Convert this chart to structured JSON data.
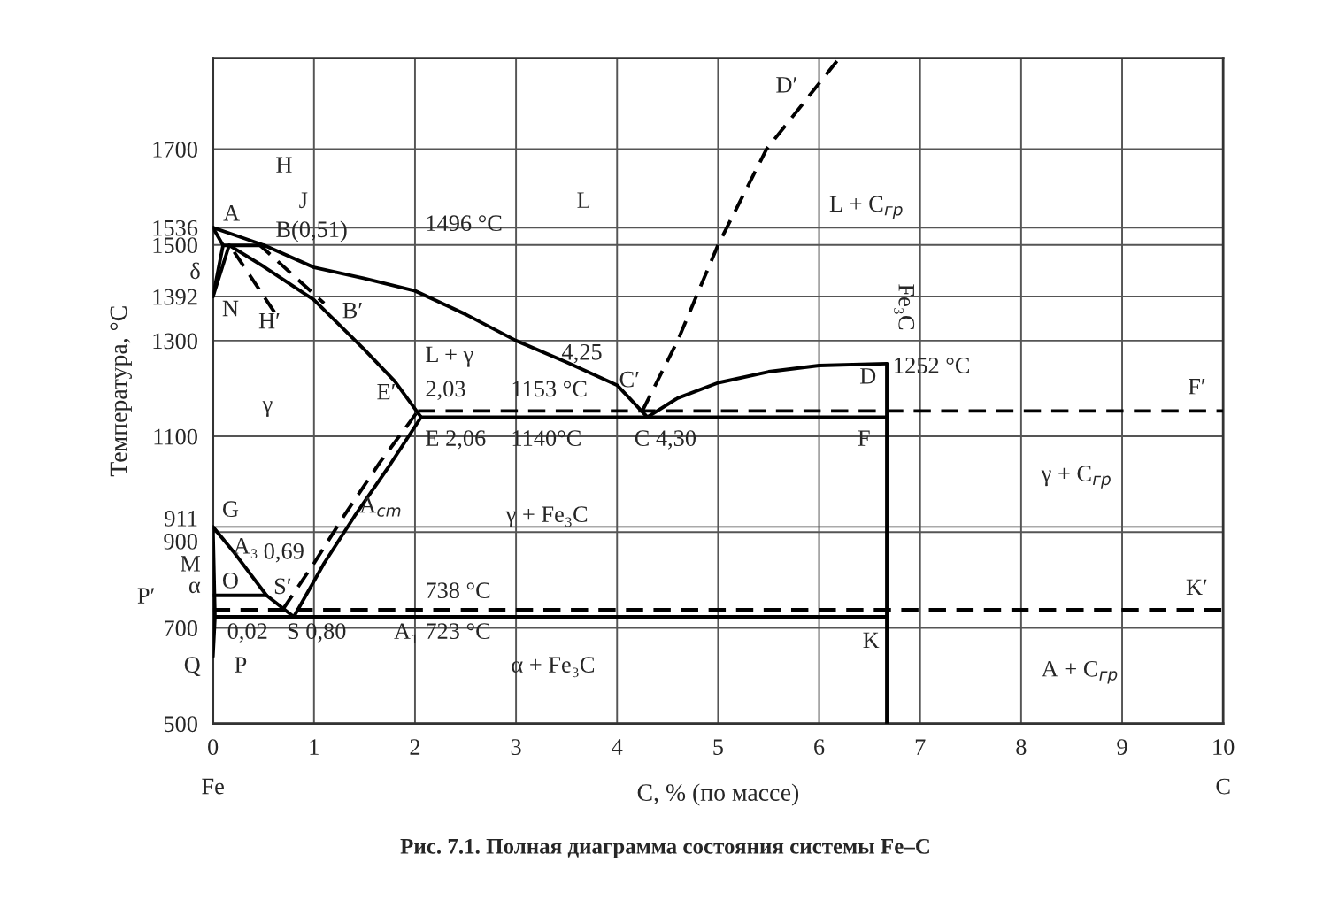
{
  "chart_data": {
    "type": "line",
    "title": "Рис. 7.1. Полная диаграмма состояния системы Fe–C",
    "xlabel": "C, % (по массе)",
    "ylabel": "Температура, °C",
    "xlim": [
      0,
      10
    ],
    "ylim": [
      500,
      1890
    ],
    "xticks": [
      0,
      1,
      2,
      3,
      4,
      5,
      6,
      7,
      8,
      9,
      10
    ],
    "yticks": [
      500,
      700,
      900,
      911,
      1100,
      1300,
      1392,
      1500,
      1536,
      1700
    ],
    "grid": true,
    "marker": "none",
    "series": [
      {
        "color": "#000000",
        "line_style": "solid",
        "x": [
          0,
          0.51,
          1,
          1.5,
          2,
          2.5,
          3,
          3.5,
          4,
          4.3
        ],
        "values": [
          1536,
          1499,
          1453,
          1430,
          1404,
          1355,
          1300,
          1255,
          1207,
          1140
        ]
      },
      {
        "color": "#000000",
        "line_style": "solid",
        "x": [
          4.3,
          4.6,
          5,
          5.5,
          6,
          6.67
        ],
        "values": [
          1140,
          1180,
          1212,
          1235,
          1248,
          1252
        ]
      },
      {
        "color": "#000000",
        "line_style": "dashed",
        "x": [
          4.25,
          4.6,
          5.0,
          5.48,
          6.2
        ],
        "values": [
          1153,
          1300,
          1500,
          1700,
          1890
        ]
      },
      {
        "color": "#000000",
        "line_style": "solid",
        "x": [
          0.16,
          0.5,
          1,
          1.5,
          1.8,
          2.06
        ],
        "values": [
          1499,
          1455,
          1385,
          1281,
          1215,
          1140
        ]
      },
      {
        "color": "#000000",
        "line_style": "dashed",
        "x": [
          0.44,
          1.1
        ],
        "values": [
          1504,
          1378
        ]
      },
      {
        "color": "#000000",
        "line_style": "dashed",
        "x": [
          0.21,
          0.61
        ],
        "values": [
          1485,
          1359
        ]
      },
      {
        "color": "#000000",
        "line_style": "solid",
        "x": [
          0,
          0.1
        ],
        "values": [
          1536,
          1499
        ]
      },
      {
        "color": "#000000",
        "line_style": "solid",
        "x": [
          0.1,
          0.51
        ],
        "values": [
          1499,
          1499
        ]
      },
      {
        "color": "#000000",
        "line_style": "solid",
        "x": [
          0.1,
          0
        ],
        "values": [
          1499,
          1392
        ]
      },
      {
        "color": "#000000",
        "line_style": "solid",
        "x": [
          0.16,
          0
        ],
        "values": [
          1499,
          1392
        ]
      },
      {
        "color": "#000000",
        "line_style": "solid",
        "x": [
          2.06,
          6.67
        ],
        "values": [
          1140,
          1140
        ]
      },
      {
        "color": "#000000",
        "line_style": "dashed",
        "x": [
          2.03,
          10
        ],
        "values": [
          1153,
          1153
        ]
      },
      {
        "color": "#000000",
        "line_style": "solid",
        "x": [
          0.8,
          1.1,
          1.4,
          1.75,
          2.06
        ],
        "values": [
          723,
          835,
          933,
          1040,
          1140
        ]
      },
      {
        "color": "#000000",
        "line_style": "dashed",
        "x": [
          0.69,
          1.0,
          1.3,
          1.65,
          2.03
        ],
        "values": [
          738,
          835,
          935,
          1045,
          1153
        ]
      },
      {
        "color": "#000000",
        "line_style": "solid",
        "x": [
          0,
          0.2,
          0.53,
          0.8
        ],
        "values": [
          911,
          860,
          768,
          723
        ]
      },
      {
        "color": "#000000",
        "line_style": "solid",
        "x": [
          0,
          0.02,
          0
        ],
        "values": [
          911,
          723,
          640
        ]
      },
      {
        "color": "#000000",
        "line_style": "solid",
        "x": [
          0,
          0.53
        ],
        "values": [
          768,
          768
        ]
      },
      {
        "color": "#000000",
        "line_style": "solid",
        "x": [
          0.02,
          6.67
        ],
        "values": [
          723,
          723
        ]
      },
      {
        "color": "#000000",
        "line_style": "dashed",
        "x": [
          0,
          10
        ],
        "values": [
          738,
          738
        ]
      },
      {
        "color": "#000000",
        "line_style": "solid",
        "x": [
          6.67,
          6.67
        ],
        "values": [
          500,
          1252
        ]
      }
    ],
    "annotations": [
      "δ",
      "M",
      "α",
      "P′",
      "Q",
      "Fe",
      "C",
      "A",
      "H",
      "J",
      "B(0,51)",
      "N",
      "H′",
      "B′",
      "1496 °C",
      "L",
      "L + γ",
      "2,03",
      "1153 °C",
      "4,25",
      "C′",
      "D′",
      "L + C$_{гр}$",
      "Fe₃C",
      "1252 °C",
      "D",
      "F′",
      "γ",
      "E′",
      "E 2,06",
      "1140°C",
      "C 4,30",
      "F",
      "γ + C$_{гр}$",
      "G",
      "γ + Fe₃C",
      "A$_{cm}$",
      "A₃",
      "0,69",
      "O",
      "S′",
      "738 °C",
      "K′",
      "0,02",
      "S 0,80",
      "A₁",
      "723 °C",
      "K",
      "α + Fe₃C",
      "A + C$_{гр}$",
      "P"
    ]
  }
}
